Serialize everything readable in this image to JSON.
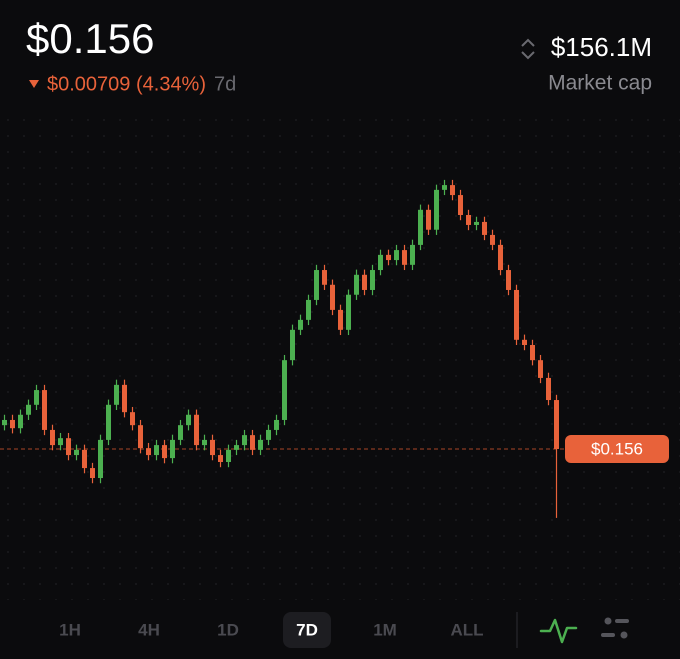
{
  "header": {
    "price": "$0.156",
    "change": "$0.00709 (4.34%)",
    "period": "7d",
    "market_cap": "$156.1M",
    "market_cap_label": "Market cap"
  },
  "chart_data": {
    "type": "candlestick",
    "open": [
      0.1615,
      0.1627,
      0.1608,
      0.1639,
      0.1662,
      0.1696,
      0.1604,
      0.1569,
      0.1585,
      0.1546,
      0.1558,
      0.1516,
      0.1493,
      0.1581,
      0.1662,
      0.1708,
      0.1645,
      0.1615,
      0.1562,
      0.1546,
      0.1569,
      0.1539,
      0.1581,
      0.1615,
      0.1639,
      0.1569,
      0.1581,
      0.1546,
      0.153,
      0.1558,
      0.1569,
      0.1592,
      0.1558,
      0.1581,
      0.1604,
      0.1627,
      0.1765,
      0.1835,
      0.1858,
      0.1904,
      0.1973,
      0.1939,
      0.1881,
      0.1835,
      0.1916,
      0.1962,
      0.1927,
      0.1973,
      0.2008,
      0.1996,
      0.2019,
      0.1985,
      0.2031,
      0.2112,
      0.2066,
      0.2158,
      0.2169,
      0.2146,
      0.21,
      0.2077,
      0.2084,
      0.2054,
      0.2031,
      0.1973,
      0.1927,
      0.1812,
      0.18,
      0.1765,
      0.1724,
      0.1673
    ],
    "high": [
      0.1639,
      0.1639,
      0.1651,
      0.1674,
      0.1708,
      0.1708,
      0.1616,
      0.1597,
      0.1597,
      0.157,
      0.157,
      0.1528,
      0.1593,
      0.1674,
      0.172,
      0.172,
      0.1657,
      0.1627,
      0.1574,
      0.1581,
      0.1581,
      0.1593,
      0.1627,
      0.1651,
      0.1651,
      0.1593,
      0.1593,
      0.1558,
      0.157,
      0.1581,
      0.1604,
      0.1604,
      0.1593,
      0.1616,
      0.1639,
      0.1777,
      0.1847,
      0.187,
      0.1916,
      0.1985,
      0.1985,
      0.1951,
      0.1893,
      0.1928,
      0.1974,
      0.1974,
      0.1985,
      0.202,
      0.202,
      0.2031,
      0.2031,
      0.2043,
      0.2124,
      0.2124,
      0.217,
      0.2181,
      0.2181,
      0.2158,
      0.2112,
      0.2096,
      0.2096,
      0.2066,
      0.2043,
      0.1985,
      0.1939,
      0.1824,
      0.1812,
      0.1777,
      0.1736,
      0.1685
    ],
    "low": [
      0.1603,
      0.1596,
      0.1596,
      0.1627,
      0.165,
      0.1592,
      0.1557,
      0.1557,
      0.1534,
      0.1534,
      0.1504,
      0.1481,
      0.1481,
      0.1569,
      0.165,
      0.1633,
      0.1603,
      0.155,
      0.1534,
      0.1534,
      0.1527,
      0.1527,
      0.1569,
      0.1603,
      0.1557,
      0.1557,
      0.1534,
      0.1518,
      0.1518,
      0.1546,
      0.1557,
      0.1546,
      0.1546,
      0.1569,
      0.1592,
      0.1615,
      0.1753,
      0.1823,
      0.1846,
      0.1892,
      0.1927,
      0.1869,
      0.1823,
      0.1823,
      0.1904,
      0.1915,
      0.1915,
      0.1961,
      0.1984,
      0.1984,
      0.1973,
      0.1973,
      0.2019,
      0.2054,
      0.2054,
      0.2146,
      0.2134,
      0.2088,
      0.2065,
      0.2065,
      0.2042,
      0.2019,
      0.1961,
      0.1915,
      0.18,
      0.1788,
      0.1753,
      0.1712,
      0.1661,
      0.1401
    ],
    "close": [
      0.1627,
      0.1608,
      0.1639,
      0.1662,
      0.1696,
      0.1604,
      0.1569,
      0.1585,
      0.1546,
      0.1558,
      0.1516,
      0.1493,
      0.1581,
      0.1662,
      0.1708,
      0.1645,
      0.1615,
      0.1562,
      0.1546,
      0.1569,
      0.1539,
      0.1581,
      0.1615,
      0.1639,
      0.1569,
      0.1581,
      0.1546,
      0.153,
      0.1558,
      0.1569,
      0.1592,
      0.1558,
      0.1581,
      0.1604,
      0.1627,
      0.1765,
      0.1835,
      0.1858,
      0.1904,
      0.1973,
      0.1939,
      0.1881,
      0.1835,
      0.1916,
      0.1962,
      0.1927,
      0.1973,
      0.2008,
      0.1996,
      0.2019,
      0.1985,
      0.2031,
      0.2112,
      0.2066,
      0.2158,
      0.2169,
      0.2146,
      0.21,
      0.2077,
      0.2084,
      0.2054,
      0.2031,
      0.1973,
      0.1927,
      0.1812,
      0.18,
      0.1765,
      0.1724,
      0.1673,
      0.156
    ],
    "ylim": [
      0.135,
      0.225
    ],
    "up_color": "#4cb050",
    "down_color": "#e8623a",
    "last_price": {
      "value": 0.156,
      "label": "$0.156"
    }
  },
  "toolbar": {
    "ranges": [
      "1H",
      "4H",
      "1D",
      "7D",
      "1M",
      "ALL"
    ],
    "selected": 3
  }
}
